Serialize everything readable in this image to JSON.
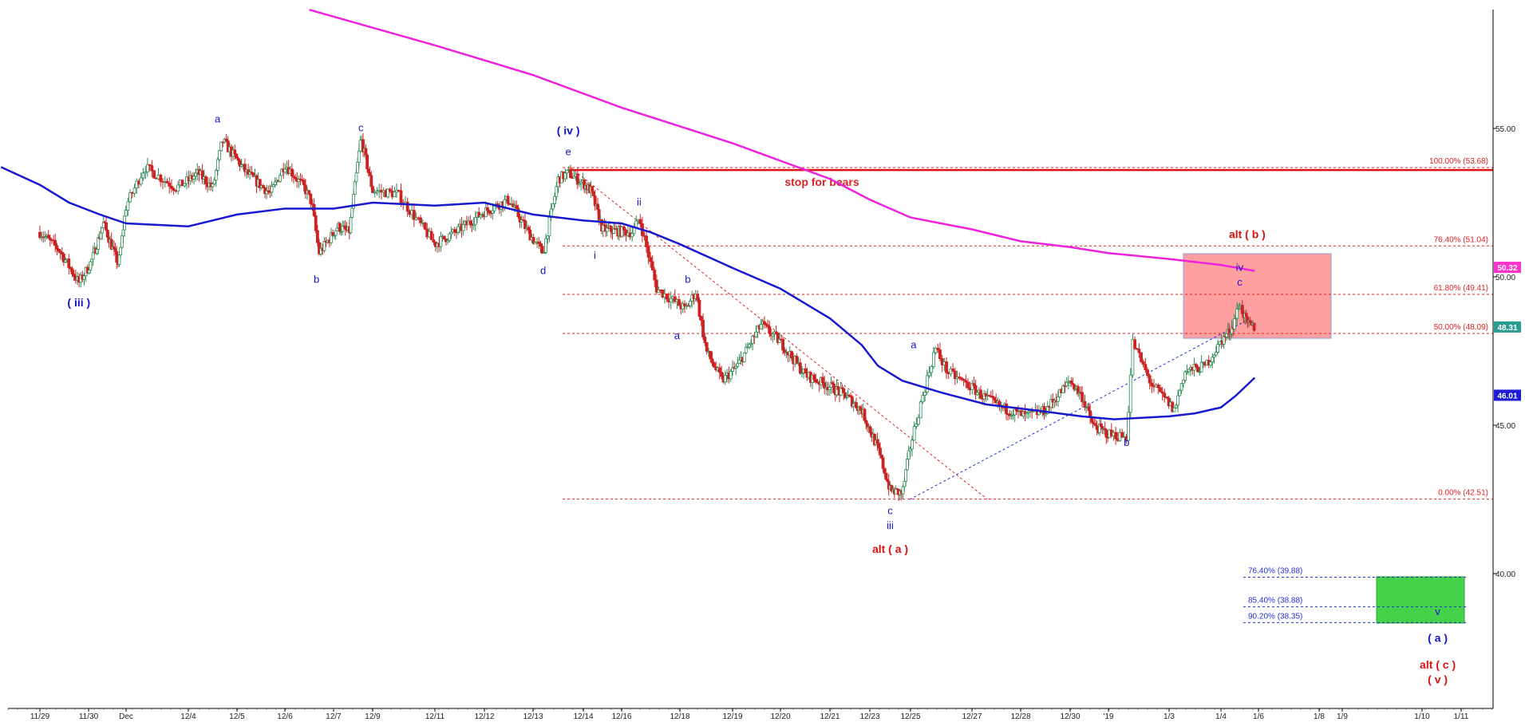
{
  "chart_data": {
    "type": "candlestick",
    "x_ticks": [
      "11/29",
      "11/30",
      "Dec",
      "12/4",
      "12/5",
      "12/6",
      "12/7",
      "12/9",
      "12/11",
      "12/12",
      "12/13",
      "12/14",
      "12/16",
      "12/18",
      "12/19",
      "12/20",
      "12/21",
      "12/23",
      "12/25",
      "12/27",
      "12/28",
      "12/30",
      "'19",
      "1/3",
      "1/4",
      "1/6",
      "1/8",
      "1/9",
      "1/10",
      "1/11"
    ],
    "y_ticks": [
      "40.00",
      "45.00",
      "50.00",
      "55.00"
    ],
    "ylim": [
      34.5,
      58
    ],
    "fib_levels": [
      {
        "label": "100.00% (53.68)",
        "value": 53.68
      },
      {
        "label": "76.40% (51.04)",
        "value": 51.04
      },
      {
        "label": "61.80% (49.41)",
        "value": 49.41
      },
      {
        "label": "50.00% (48.09)",
        "value": 48.09
      },
      {
        "label": "0.00% (42.51)",
        "value": 42.51
      }
    ],
    "target_levels": [
      {
        "label": "76.40% (39.88)",
        "value": 39.88
      },
      {
        "label": "85.40% (38.88)",
        "value": 38.88
      },
      {
        "label": "90.20% (38.35)",
        "value": 38.35
      }
    ],
    "price_tags": [
      {
        "label": "50.32",
        "value": 50.32,
        "color": "#ff33cc"
      },
      {
        "label": "48.31",
        "value": 48.31,
        "color": "#2a9d8f"
      },
      {
        "label": "46.01",
        "value": 46.01,
        "color": "#1c1cd6"
      }
    ],
    "stop_line": {
      "label": "stop for bears",
      "value": 53.6
    },
    "wave_labels": [
      {
        "text": "( iii )",
        "x": 0.8,
        "y": 49.0,
        "color": "blue",
        "bold": true
      },
      {
        "text": "a",
        "x": 3.6,
        "y": 55.2,
        "color": "blue"
      },
      {
        "text": "b",
        "x": 5.65,
        "y": 49.8,
        "color": "blue"
      },
      {
        "text": "c",
        "x": 6.7,
        "y": 54.9,
        "color": "blue"
      },
      {
        "text": "( iv )",
        "x": 10.7,
        "y": 54.8,
        "color": "blue",
        "bold": true
      },
      {
        "text": "e",
        "x": 10.7,
        "y": 54.1,
        "color": "blue"
      },
      {
        "text": "d",
        "x": 10.2,
        "y": 50.1,
        "color": "blue"
      },
      {
        "text": "i",
        "x": 11.3,
        "y": 50.6,
        "color": "blue"
      },
      {
        "text": "ii",
        "x": 12.3,
        "y": 52.4,
        "color": "blue"
      },
      {
        "text": "b",
        "x": 13.15,
        "y": 49.8,
        "color": "blue"
      },
      {
        "text": "a",
        "x": 12.95,
        "y": 47.9,
        "color": "blue"
      },
      {
        "text": "a",
        "x": 18.05,
        "y": 47.6,
        "color": "blue"
      },
      {
        "text": "c",
        "x": 17.5,
        "y": 42.0,
        "color": "blue"
      },
      {
        "text": "iii",
        "x": 17.5,
        "y": 41.5,
        "color": "blue"
      },
      {
        "text": "alt ( a )",
        "x": 17.5,
        "y": 40.7,
        "color": "red",
        "bold": true
      },
      {
        "text": "b",
        "x": 22.3,
        "y": 44.3,
        "color": "blue"
      },
      {
        "text": "alt ( b )",
        "x": 24.7,
        "y": 51.3,
        "color": "red",
        "bold": true
      },
      {
        "text": "iv",
        "x": 24.5,
        "y": 50.2,
        "color": "blue"
      },
      {
        "text": "c",
        "x": 24.5,
        "y": 49.7,
        "color": "blue"
      },
      {
        "text": "v",
        "x": 28.4,
        "y": 38.6,
        "color": "blue"
      },
      {
        "text": "( a )",
        "x": 28.4,
        "y": 37.7,
        "color": "blue",
        "bold": true
      },
      {
        "text": "alt ( c )",
        "x": 28.4,
        "y": 36.8,
        "color": "red",
        "bold": true
      },
      {
        "text": "( v )",
        "x": 28.4,
        "y": 36.3,
        "color": "red",
        "bold": true
      }
    ]
  }
}
